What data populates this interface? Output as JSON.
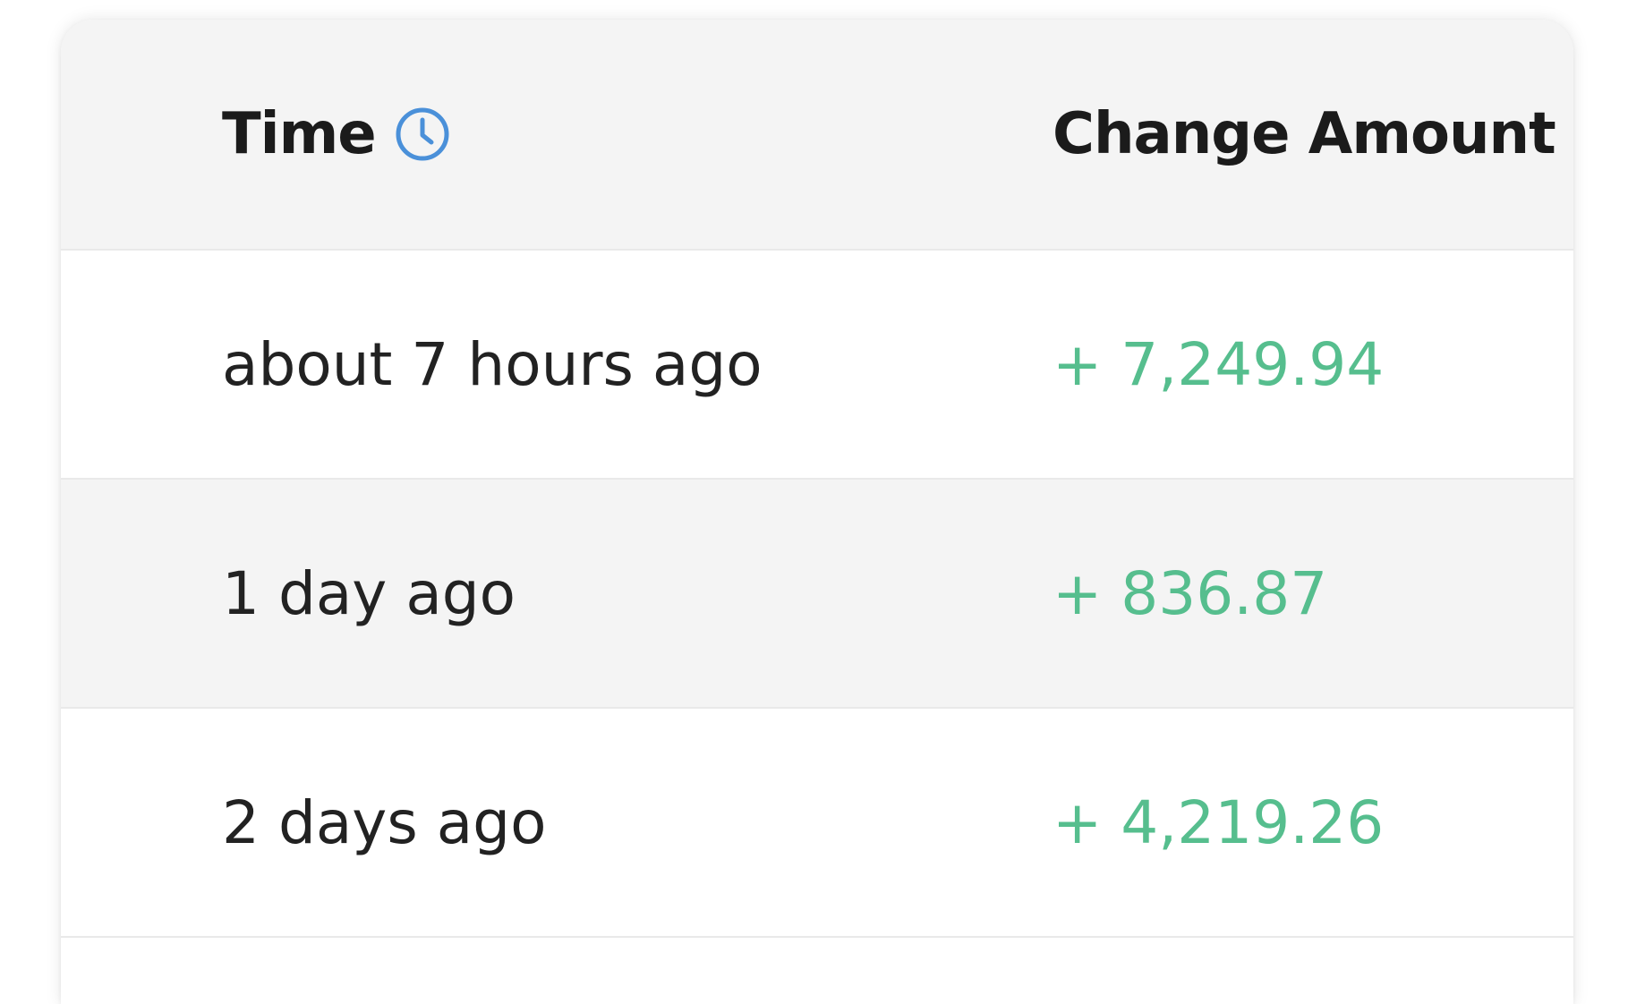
{
  "table": {
    "headers": {
      "time": "Time",
      "change_amount": "Change Amount",
      "time_icon": "clock-icon"
    },
    "rows": [
      {
        "time": "about 7 hours ago",
        "amount": "+ 7,249.94"
      },
      {
        "time": "1 day ago",
        "amount": "+ 836.87"
      },
      {
        "time": "2 days ago",
        "amount": "+ 4,219.26"
      }
    ]
  },
  "colors": {
    "positive_amount": "#56be8e",
    "icon_accent": "#4a90d9",
    "header_bg": "#f4f4f4",
    "row_alt_bg": "#f4f4f4"
  }
}
